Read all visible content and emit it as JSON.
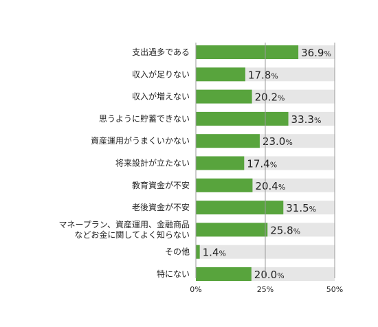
{
  "chart_data": {
    "type": "bar",
    "orientation": "horizontal",
    "categories": [
      [
        "支出過多である"
      ],
      [
        "収入が足りない"
      ],
      [
        "収入が増えない"
      ],
      [
        "思うように貯蓄できない"
      ],
      [
        "資産運用がうまくいかない"
      ],
      [
        "将来設計が立たない"
      ],
      [
        "教育資金が不安"
      ],
      [
        "老後資金が不安"
      ],
      [
        "マネープラン、資産運用、金融商品",
        "などお金に関してよく知らない"
      ],
      [
        "その他"
      ],
      [
        "特にない"
      ]
    ],
    "values": [
      36.9,
      17.8,
      20.2,
      33.3,
      23.0,
      17.4,
      20.4,
      31.5,
      25.8,
      1.4,
      20.0
    ],
    "value_labels": [
      "36.9",
      "17.8",
      "20.2",
      "33.3",
      "23.0",
      "17.4",
      "20.4",
      "31.5",
      "25.8",
      "1.4",
      "20.0"
    ],
    "value_suffix": "%",
    "xlim": [
      0,
      50
    ],
    "ticks": [
      0,
      25,
      50
    ],
    "tick_labels": [
      "0%",
      "25%",
      "50%"
    ],
    "legend": "none",
    "grid": false,
    "colors": {
      "bar": "#58a43d",
      "track": "#e6e6e6",
      "axis": "#9a9a9a",
      "text": "#222222"
    }
  }
}
